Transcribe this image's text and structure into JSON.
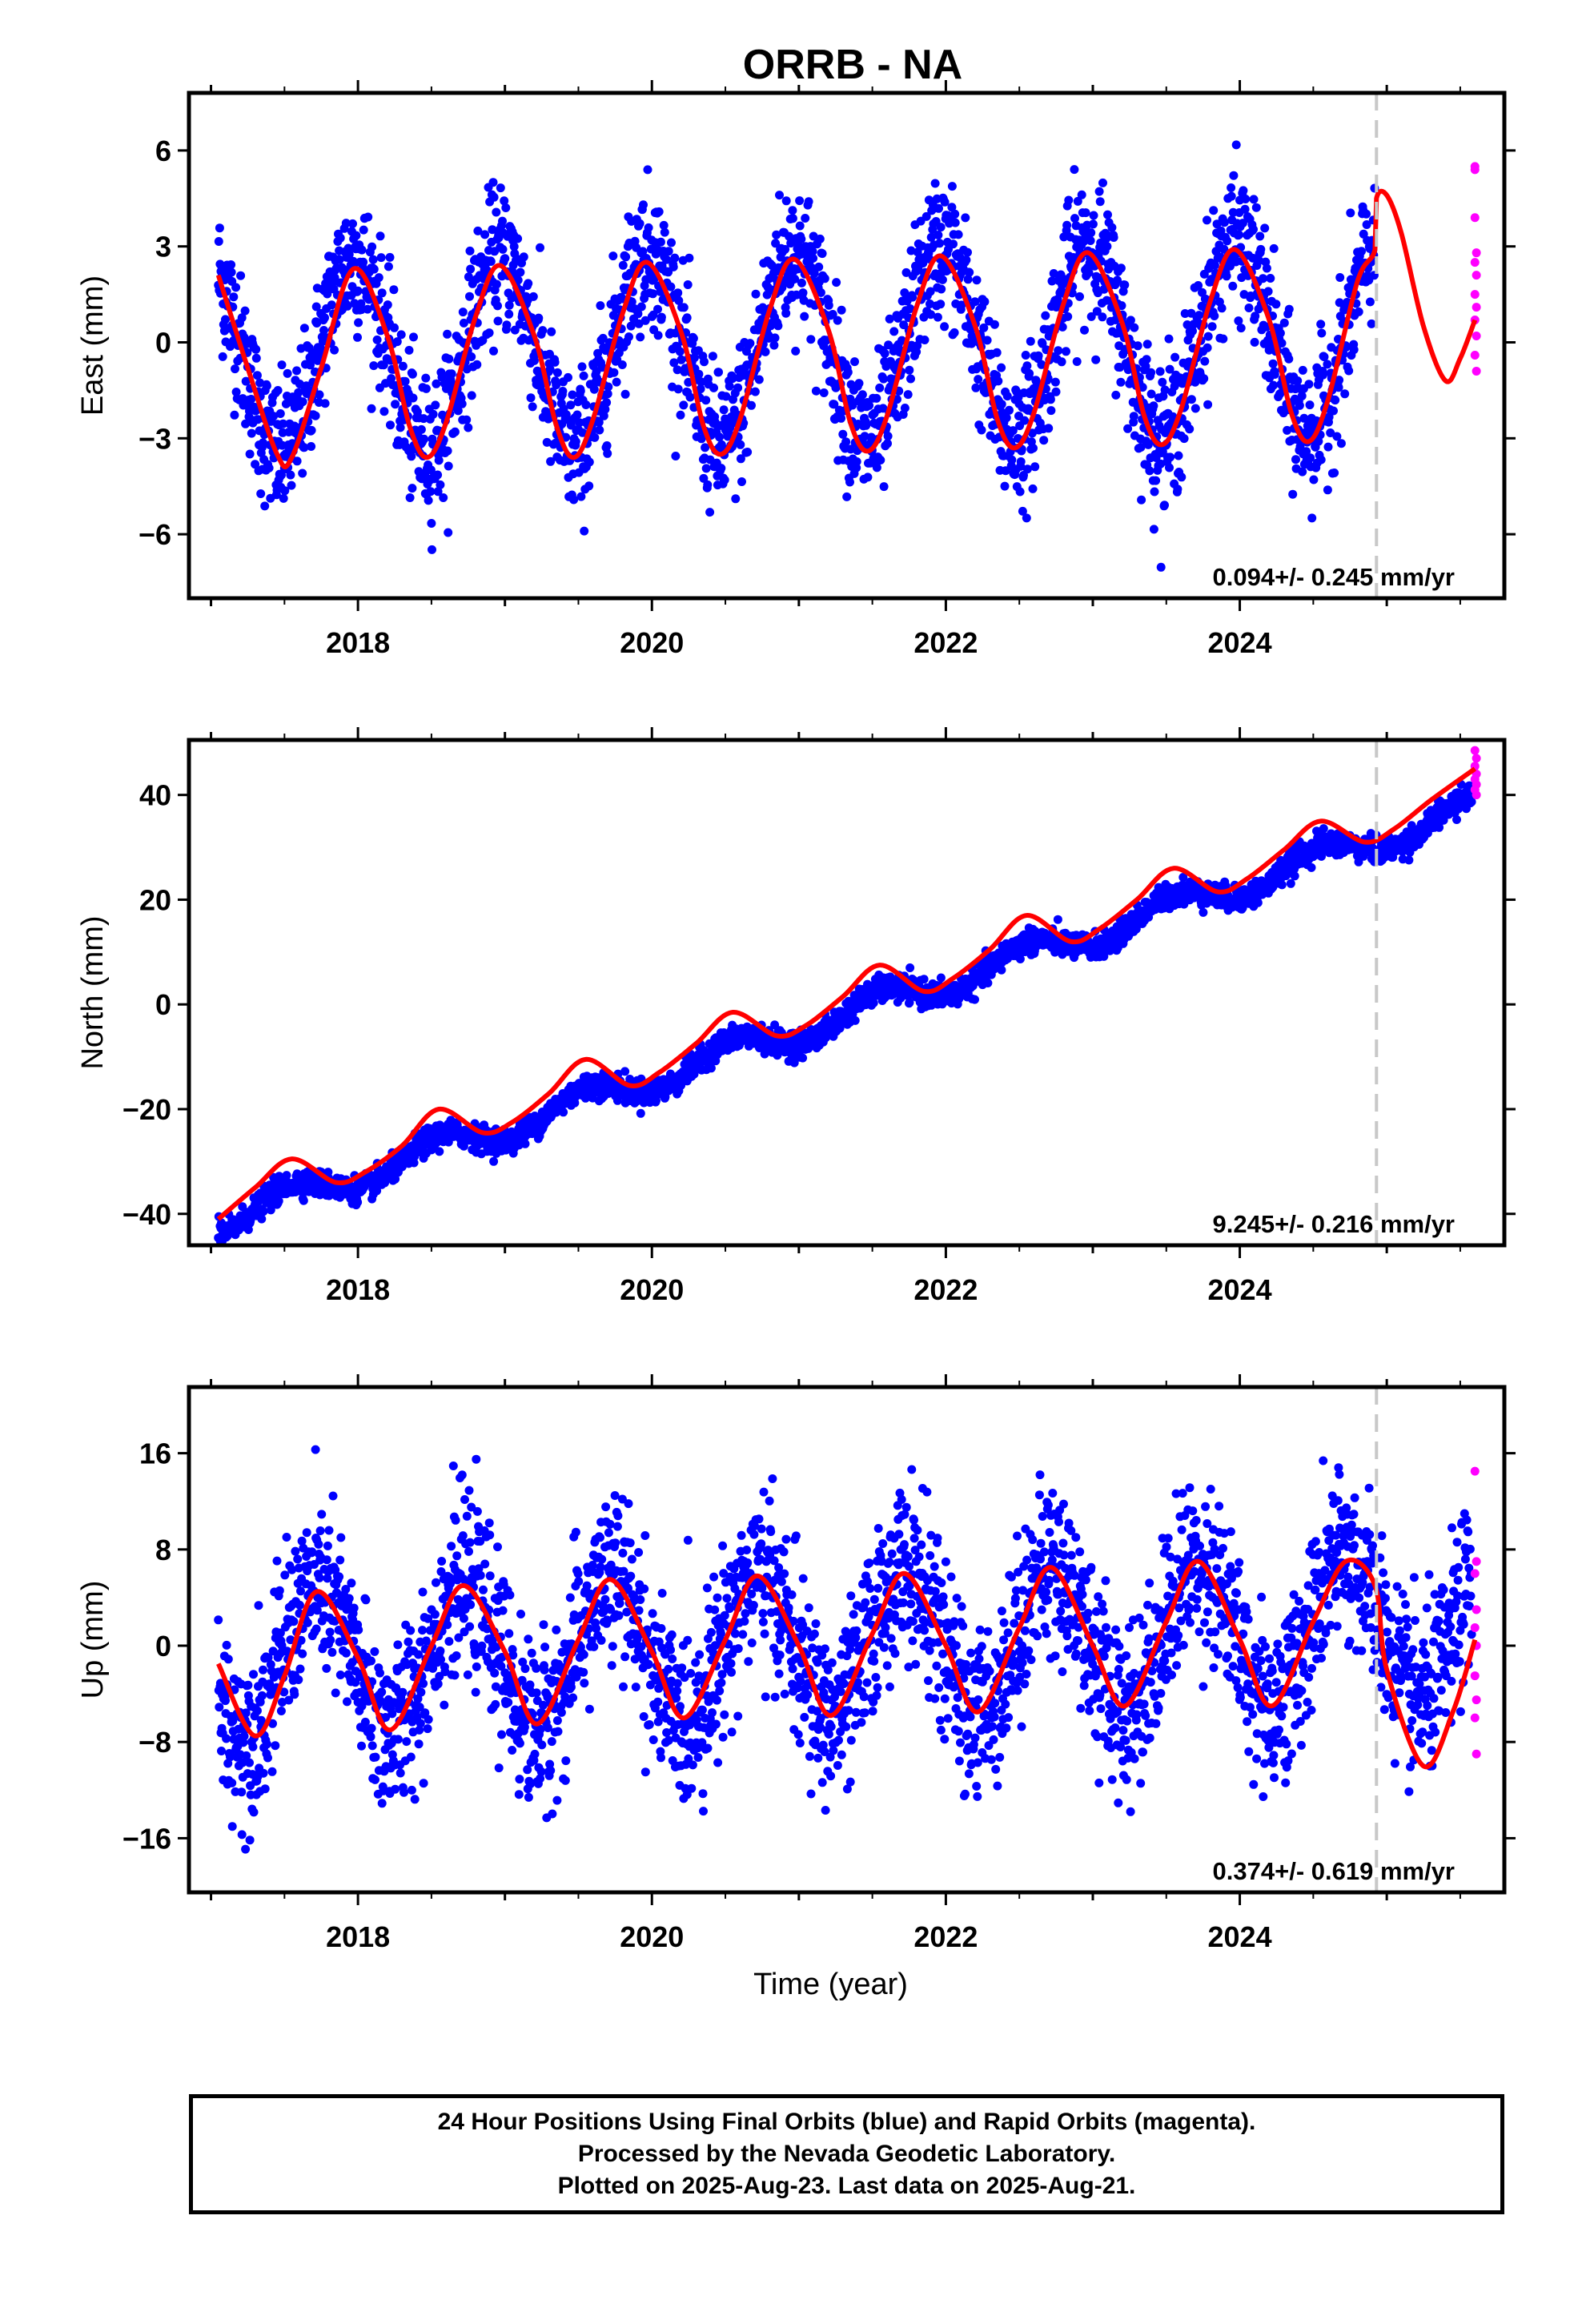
{
  "title": "ORRB - NA",
  "chart_data": [
    {
      "type": "scatter",
      "panel": "east",
      "ylabel": "East (mm)",
      "xlabel": "",
      "xlim": [
        2016.85,
        2025.8
      ],
      "ylim": [
        -8,
        7.8
      ],
      "yticks": [
        6,
        3,
        0,
        -3,
        -6
      ],
      "ytick_labels": [
        "6",
        "3",
        "0",
        "−3",
        "−6"
      ],
      "xticks": [
        2018,
        2020,
        2022,
        2024
      ],
      "xtick_labels": [
        "2018",
        "2020",
        "2022",
        "2024"
      ],
      "rate_label": "0.094+/- 0.245 mm/yr",
      "break_line_x": 2024.93,
      "grid": false,
      "series": [
        {
          "color": "#0000ff",
          "kind": "points",
          "x_start": 2017.05,
          "x_end": 2024.92,
          "model_amplitude": 3.0,
          "offset": -0.5,
          "trend": 0.094,
          "phase_peak": 2017.97,
          "scatter": 1.1
        },
        {
          "color": "#ff00ff",
          "kind": "points",
          "x": [
            2025.6,
            2025.6,
            2025.6,
            2025.61,
            2025.6,
            2025.61,
            2025.6,
            2025.61,
            2025.6,
            2025.61,
            2025.6,
            2025.61
          ],
          "y": [
            5.5,
            5.4,
            3.9,
            2.8,
            2.5,
            2.1,
            1.5,
            1.1,
            0.7,
            0.2,
            -0.4,
            -0.9
          ]
        },
        {
          "color": "#ff0000",
          "kind": "model_line",
          "x": [
            2017.05,
            2017.25,
            2017.45,
            2017.55,
            2017.75,
            2017.97,
            2018.2,
            2018.35,
            2018.47,
            2018.6,
            2018.8,
            2018.97,
            2019.2,
            2019.35,
            2019.47,
            2019.6,
            2019.8,
            2019.97,
            2020.2,
            2020.35,
            2020.47,
            2020.6,
            2020.8,
            2020.97,
            2021.2,
            2021.35,
            2021.47,
            2021.6,
            2021.8,
            2021.97,
            2022.2,
            2022.35,
            2022.47,
            2022.6,
            2022.8,
            2022.97,
            2023.2,
            2023.35,
            2023.47,
            2023.6,
            2023.8,
            2023.97,
            2024.2,
            2024.35,
            2024.47,
            2024.6,
            2024.8,
            2024.92,
            2024.93,
            2025.0,
            2025.1,
            2025.25,
            2025.4,
            2025.5,
            2025.6
          ],
          "y": [
            2.1,
            -0.8,
            -3.5,
            -3.6,
            -0.8,
            2.3,
            0.2,
            -2.6,
            -3.6,
            -2.5,
            0.8,
            2.4,
            0.2,
            -2.6,
            -3.6,
            -2.4,
            0.9,
            2.5,
            0.3,
            -2.6,
            -3.5,
            -2.4,
            1.0,
            2.6,
            0.4,
            -2.5,
            -3.4,
            -2.3,
            1.1,
            2.7,
            0.5,
            -2.4,
            -3.3,
            -2.2,
            1.2,
            2.8,
            0.6,
            -2.3,
            -3.2,
            -2.1,
            1.3,
            2.9,
            0.7,
            -2.2,
            -3.1,
            -1.8,
            1.9,
            2.9,
            4.5,
            4.6,
            3.4,
            0.5,
            -1.2,
            -0.5,
            0.7
          ]
        }
      ]
    },
    {
      "type": "scatter",
      "panel": "north",
      "ylabel": "North (mm)",
      "xlabel": "",
      "xlim": [
        2016.85,
        2025.8
      ],
      "ylim": [
        -46,
        50.5
      ],
      "yticks": [
        40,
        20,
        0,
        -20,
        -40
      ],
      "ytick_labels": [
        "40",
        "20",
        "0",
        "−20",
        "−40"
      ],
      "xticks": [
        2018,
        2020,
        2022,
        2024
      ],
      "xtick_labels": [
        "2018",
        "2020",
        "2022",
        "2024"
      ],
      "rate_label": "9.245+/- 0.216 mm/yr",
      "break_line_x": 2024.93,
      "grid": false,
      "series": [
        {
          "color": "#0000ff",
          "kind": "points",
          "x_start": 2017.05,
          "x_end": 2025.58,
          "model_amplitude": 2.6,
          "offset": -41.5,
          "trend": 9.245,
          "phase_peak": 2017.55,
          "scatter": 1.2
        },
        {
          "color": "#ff00ff",
          "kind": "points",
          "x": [
            2025.6,
            2025.61,
            2025.6,
            2025.61,
            2025.6,
            2025.61,
            2025.6,
            2025.61
          ],
          "y": [
            48.5,
            47.0,
            45.5,
            44.0,
            43.0,
            42.0,
            41.0,
            40.0
          ]
        },
        {
          "color": "#ff0000",
          "kind": "model_line",
          "x": [
            2017.05,
            2017.3,
            2017.55,
            2017.85,
            2018.05,
            2018.3,
            2018.55,
            2018.85,
            2019.05,
            2019.3,
            2019.55,
            2019.85,
            2020.05,
            2020.3,
            2020.55,
            2020.85,
            2021.05,
            2021.3,
            2021.55,
            2021.85,
            2022.05,
            2022.3,
            2022.55,
            2022.85,
            2023.05,
            2023.3,
            2023.55,
            2023.85,
            2024.05,
            2024.3,
            2024.55,
            2024.85,
            2025.05,
            2025.3,
            2025.6
          ],
          "y": [
            -41,
            -35,
            -29.5,
            -34,
            -32,
            -27,
            -20,
            -24.5,
            -22.5,
            -17,
            -10.5,
            -15.5,
            -13,
            -7.5,
            -1.5,
            -6,
            -4,
            1.5,
            7.5,
            2.5,
            5,
            10.5,
            17,
            12,
            14.5,
            20,
            26,
            21.5,
            24,
            29.5,
            35,
            31,
            33.5,
            39,
            45
          ]
        }
      ]
    },
    {
      "type": "scatter",
      "panel": "up",
      "ylabel": "Up (mm)",
      "xlabel": "Time (year)",
      "xlim": [
        2016.85,
        2025.8
      ],
      "ylim": [
        -20.5,
        21.5
      ],
      "yticks": [
        16,
        8,
        0,
        -8,
        -16
      ],
      "ytick_labels": [
        "16",
        "8",
        "0",
        "−8",
        "−16"
      ],
      "xticks": [
        2018,
        2020,
        2022,
        2024
      ],
      "xtick_labels": [
        "2018",
        "2020",
        "2022",
        "2024"
      ],
      "rate_label": "0.374+/- 0.619 mm/yr",
      "break_line_x": 2024.93,
      "grid": false,
      "series": [
        {
          "color": "#0000ff",
          "kind": "points",
          "x_start": 2017.05,
          "x_end": 2025.58,
          "model_amplitude": 6.0,
          "offset": -1.5,
          "trend": 0.374,
          "phase_peak": 2017.72,
          "scatter": 3.5
        },
        {
          "color": "#ff00ff",
          "kind": "points",
          "x": [
            2025.6,
            2025.61,
            2025.6,
            2025.61,
            2025.6,
            2025.61,
            2025.6,
            2025.61,
            2025.6,
            2025.61
          ],
          "y": [
            14.5,
            7.0,
            6.0,
            3.0,
            1.5,
            0.0,
            -2.5,
            -4.5,
            -6.0,
            -9.0
          ]
        },
        {
          "color": "#ff0000",
          "kind": "model_line",
          "x": [
            2017.05,
            2017.3,
            2017.5,
            2017.72,
            2018.0,
            2018.22,
            2018.5,
            2018.72,
            2019.0,
            2019.22,
            2019.5,
            2019.72,
            2020.0,
            2020.22,
            2020.5,
            2020.72,
            2021.0,
            2021.22,
            2021.5,
            2021.72,
            2022.0,
            2022.22,
            2022.5,
            2022.72,
            2023.0,
            2023.22,
            2023.5,
            2023.72,
            2024.0,
            2024.22,
            2024.5,
            2024.72,
            2024.92,
            2025.0,
            2025.25,
            2025.45,
            2025.6
          ],
          "y": [
            -1.5,
            -7.5,
            -2.5,
            4.5,
            -1.0,
            -7.0,
            0.0,
            5.0,
            -0.5,
            -6.5,
            0.5,
            5.5,
            -0.5,
            -6.0,
            0.5,
            5.8,
            0.0,
            -5.8,
            1.0,
            6.0,
            0.0,
            -5.5,
            1.5,
            6.5,
            0.0,
            -5.0,
            2.0,
            7.0,
            0.5,
            -5.0,
            2.0,
            7.0,
            5.0,
            -2.0,
            -10.0,
            -5.5,
            0.5
          ]
        }
      ]
    }
  ],
  "footer": {
    "line1": "24 Hour Positions Using Final Orbits (blue) and Rapid Orbits (magenta).",
    "line2": "Processed by the Nevada Geodetic Laboratory.",
    "line3": "Plotted on 2025-Aug-23. Last data on 2025-Aug-21."
  }
}
